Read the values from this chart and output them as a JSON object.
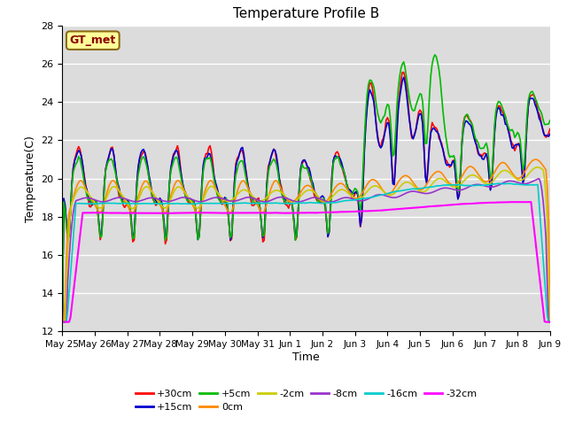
{
  "title": "Temperature Profile B",
  "xlabel": "Time",
  "ylabel": "Temperature(C)",
  "ylim": [
    12,
    28
  ],
  "yticks": [
    12,
    14,
    16,
    18,
    20,
    22,
    24,
    26,
    28
  ],
  "annotation_text": "GT_met",
  "annotation_color": "#8B0000",
  "annotation_bg": "#FFFF99",
  "annotation_border": "#8B6914",
  "background_color": "#DCDCDC",
  "series_names": [
    "+30cm",
    "+15cm",
    "+5cm",
    "0cm",
    "-2cm",
    "-8cm",
    "-16cm",
    "-32cm"
  ],
  "series_colors": [
    "#FF0000",
    "#0000CC",
    "#00BB00",
    "#FF8800",
    "#CCCC00",
    "#9933CC",
    "#00CCCC",
    "#FF00FF"
  ],
  "series_lw": [
    1.2,
    1.2,
    1.2,
    1.2,
    1.2,
    1.2,
    1.2,
    1.5
  ]
}
